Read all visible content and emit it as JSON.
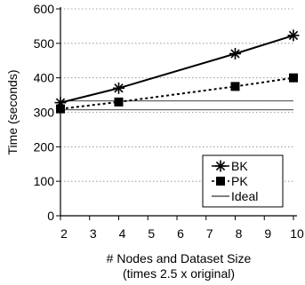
{
  "chart_data": {
    "type": "line",
    "x": [
      2,
      4,
      8,
      10
    ],
    "xlim": [
      2,
      10
    ],
    "ylim": [
      0,
      600
    ],
    "x_ticks": [
      2,
      3,
      4,
      5,
      6,
      7,
      8,
      9,
      10
    ],
    "y_ticks": [
      0,
      100,
      200,
      300,
      400,
      500,
      600
    ],
    "xlabel": "# Nodes and Dataset Size",
    "xlabel_line2": "(times 2.5 x original)",
    "ylabel": "Time (seconds)",
    "grid": "horizontal-dotted",
    "legend_position": "bottom-right",
    "series": [
      {
        "name": "BK",
        "values": [
          328,
          370,
          470,
          523
        ],
        "marker": "asterisk",
        "line": "solid",
        "color": "#000000"
      },
      {
        "name": "PK",
        "values": [
          310,
          330,
          375,
          400
        ],
        "marker": "square",
        "line": "dashed",
        "color": "#000000"
      },
      {
        "name": "Ideal",
        "values": [
          320,
          320,
          320,
          320
        ],
        "marker": "none",
        "line": "double-thin",
        "color": "#000000"
      }
    ]
  }
}
